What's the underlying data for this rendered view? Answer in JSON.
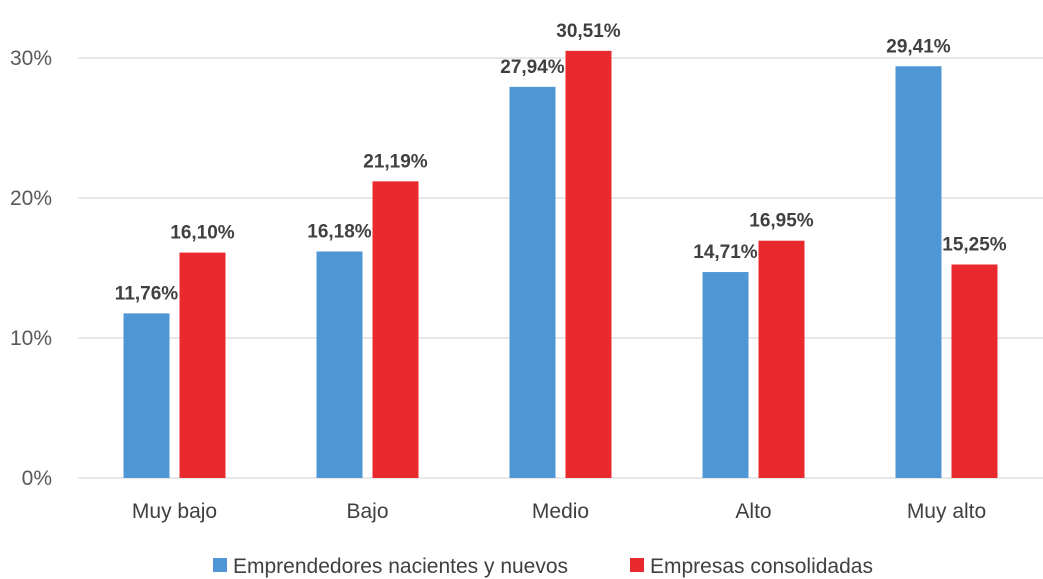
{
  "chart_data": {
    "type": "bar",
    "categories": [
      "Muy bajo",
      "Bajo",
      "Medio",
      "Alto",
      "Muy alto"
    ],
    "series": [
      {
        "name": "Emprendedores nacientes y nuevos",
        "color": "#4f97d4",
        "values": [
          11.76,
          16.18,
          27.94,
          14.71,
          29.41
        ],
        "labels": [
          "11,76%",
          "16,18%",
          "27,94%",
          "14,71%",
          "29,41%"
        ]
      },
      {
        "name": "Empresas consolidadas",
        "color": "#e8292e",
        "values": [
          16.1,
          21.19,
          30.51,
          16.95,
          15.25
        ],
        "labels": [
          "16,10%",
          "21,19%",
          "30,51%",
          "16,95%",
          "15,25%"
        ]
      }
    ],
    "y_ticks": [
      0,
      10,
      20,
      30
    ],
    "y_tick_labels": [
      "0%",
      "10%",
      "20%",
      "30%"
    ],
    "ylim": [
      0,
      30
    ],
    "grid": true,
    "legend_position": "bottom",
    "title": "",
    "xlabel": "",
    "ylabel": ""
  }
}
